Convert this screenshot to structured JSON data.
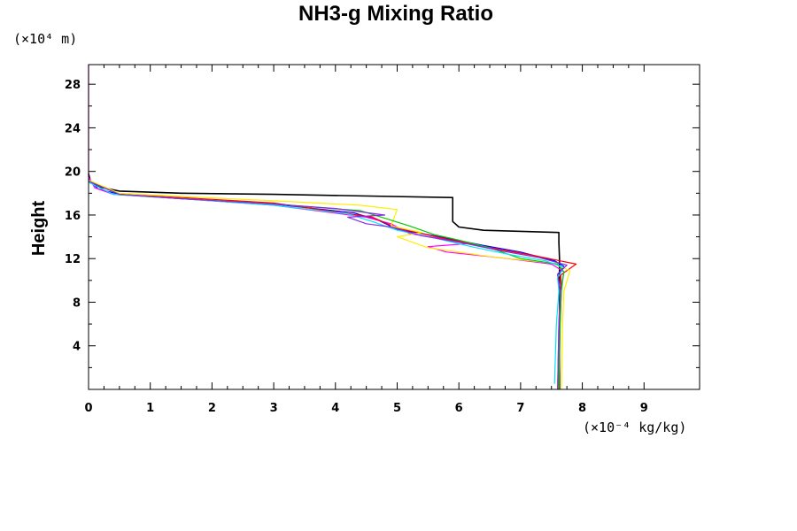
{
  "chart_data": {
    "type": "line",
    "title": "NH3-g Mixing Ratio",
    "ylabel": "Height",
    "y_unit": "(×10⁴ m)",
    "x_unit": "(×10⁻⁴ kg/kg)",
    "xlim": [
      0,
      9.9
    ],
    "ylim": [
      0,
      29.8
    ],
    "x_ticks": [
      "0",
      "1",
      "2",
      "3",
      "4",
      "5",
      "6",
      "7",
      "8",
      "9"
    ],
    "y_ticks": [
      "4",
      "8",
      "12",
      "16",
      "20",
      "24",
      "28"
    ],
    "grid": false,
    "series": [
      {
        "color": "#000000",
        "width": 1.6,
        "x": [
          7.63,
          7.63,
          7.63,
          7.63,
          7.62,
          7.62,
          7.62,
          6.4,
          6.0,
          5.9,
          5.9,
          5.9,
          3.0,
          1.5,
          0.5,
          0.15,
          0.03,
          0.0
        ],
        "y": [
          0,
          8,
          10,
          12,
          13.5,
          14.2,
          14.4,
          14.6,
          14.9,
          15.4,
          17.0,
          17.6,
          17.9,
          18.0,
          18.2,
          18.6,
          19.1,
          19.8
        ]
      },
      {
        "color": "#0000ff",
        "width": 1.2,
        "x": [
          7.62,
          7.63,
          7.65,
          7.6,
          7.7,
          7.55,
          7.0,
          6.4,
          5.6,
          5.0,
          4.7,
          4.3,
          3.0,
          1.5,
          0.5,
          0.15,
          0.0
        ],
        "y": [
          0,
          6,
          9,
          10.5,
          11.3,
          11.8,
          12.6,
          13.2,
          14.1,
          14.7,
          15.5,
          16.2,
          17.0,
          17.5,
          17.9,
          18.4,
          19.3
        ]
      },
      {
        "color": "#ff00ff",
        "width": 1.2,
        "x": [
          7.6,
          7.62,
          7.65,
          7.7,
          7.5,
          6.8,
          5.8,
          5.5,
          6.2,
          5.2,
          4.9,
          4.5,
          3.0,
          1.5,
          0.4,
          0.1,
          0.0,
          0.0
        ],
        "y": [
          0,
          6,
          9,
          10.8,
          11.5,
          12.0,
          12.6,
          13.1,
          13.4,
          14.3,
          15.2,
          15.8,
          16.9,
          17.5,
          17.9,
          18.5,
          19.5,
          29.8
        ]
      },
      {
        "color": "#ff0000",
        "width": 1.2,
        "x": [
          7.62,
          7.64,
          7.66,
          7.65,
          7.9,
          7.2,
          6.6,
          5.8,
          5.0,
          4.6,
          3.0,
          1.5,
          0.5,
          0.0
        ],
        "y": [
          0,
          6,
          9,
          10.5,
          11.5,
          12.3,
          12.9,
          13.8,
          14.8,
          15.8,
          17.1,
          17.6,
          17.9,
          19.2
        ]
      },
      {
        "color": "#ffee00",
        "width": 1.2,
        "x": [
          7.66,
          7.68,
          7.7,
          7.8,
          7.5,
          6.5,
          5.5,
          5.0,
          5.4,
          4.9,
          5.0,
          4.4,
          3.0,
          1.5,
          0.5,
          0.0
        ],
        "y": [
          0,
          6,
          9,
          10.9,
          11.6,
          12.2,
          13.0,
          14.0,
          14.4,
          15.0,
          16.5,
          16.9,
          17.3,
          17.7,
          18.0,
          19.2
        ]
      },
      {
        "color": "#00cc00",
        "width": 1.2,
        "x": [
          7.62,
          7.64,
          7.66,
          7.7,
          7.6,
          7.0,
          6.5,
          6.0,
          5.6,
          5.2,
          4.8,
          4.4,
          3.0,
          1.5,
          0.5,
          0.0
        ],
        "y": [
          0,
          6,
          9,
          10.8,
          11.5,
          12.0,
          13.0,
          13.7,
          14.2,
          15.0,
          15.7,
          16.4,
          17.0,
          17.5,
          17.9,
          19.1
        ]
      },
      {
        "color": "#00e5ff",
        "width": 1.2,
        "x": [
          7.55,
          7.58,
          7.62,
          7.6,
          7.7,
          7.4,
          6.8,
          6.2,
          5.6,
          5.0,
          4.6,
          4.2,
          3.0,
          1.5,
          0.4,
          0.0
        ],
        "y": [
          0.5,
          6,
          9,
          10.2,
          11.2,
          11.8,
          12.4,
          13.1,
          13.9,
          14.6,
          15.4,
          16.1,
          16.9,
          17.5,
          17.9,
          19.0
        ]
      },
      {
        "color": "#8a2be2",
        "width": 1.2,
        "x": [
          7.6,
          7.62,
          7.64,
          7.6,
          7.75,
          7.3,
          6.7,
          6.1,
          5.4,
          4.9,
          4.5,
          4.2,
          4.8,
          4.0,
          3.0,
          1.5,
          0.5,
          0.0
        ],
        "y": [
          0,
          6,
          9,
          10.6,
          11.4,
          12.1,
          12.7,
          13.4,
          14.1,
          14.9,
          15.2,
          15.8,
          16.0,
          16.6,
          17.0,
          17.5,
          17.9,
          19.1
        ]
      }
    ]
  }
}
